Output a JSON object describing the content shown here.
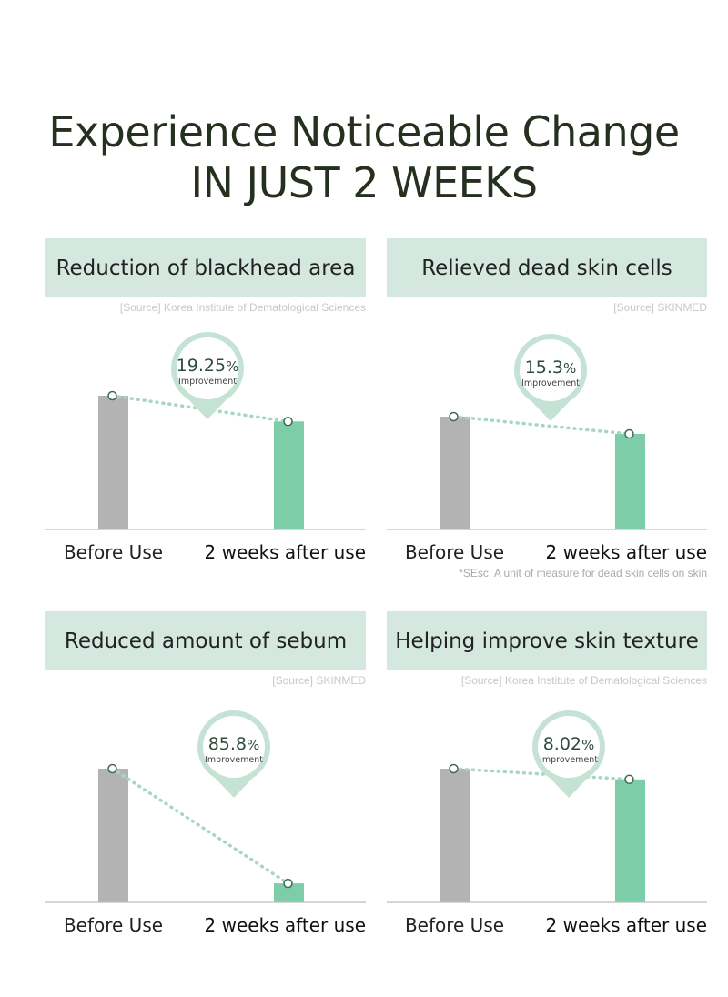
{
  "headline": {
    "line1": "Experience Noticeable Change",
    "line2": "IN JUST 2 WEEKS"
  },
  "colors": {
    "banner": "#d5e8df",
    "before_bar": "#b3b3b3",
    "after_bar": "#7ccda8",
    "dotted_line": "#a9d6c4",
    "badge_ring": "#c4e3d5",
    "badge_percent": "#2e4c3c"
  },
  "chart_data": [
    {
      "type": "bar",
      "title": "Reduction of blackhead area",
      "source": "[Source] Korea Institute of Dematological Sciences",
      "categories": [
        "Before Use",
        "2 weeks after use"
      ],
      "values": [
        100,
        80.75
      ],
      "improvement": "19.25",
      "improvement_unit": "%",
      "improvement_label": "Improvement",
      "footnote": ""
    },
    {
      "type": "bar",
      "title": "Relieved dead skin cells",
      "source": "[Source] SKINMED",
      "categories": [
        "Before Use",
        "2 weeks after use"
      ],
      "values": [
        100,
        84.7
      ],
      "improvement": "15.3",
      "improvement_unit": "%",
      "improvement_label": "Improvement",
      "footnote": "*SEsc: A unit of measure for dead skin cells on skin"
    },
    {
      "type": "bar",
      "title": "Reduced amount of sebum",
      "source": "[Source] SKINMED",
      "categories": [
        "Before Use",
        "2 weeks after use"
      ],
      "values": [
        100,
        14.2
      ],
      "improvement": "85.8",
      "improvement_unit": "%",
      "improvement_label": "Improvement",
      "footnote": ""
    },
    {
      "type": "bar",
      "title": "Helping improve skin texture",
      "source": "[Source] Korea Institute of Dematological Sciences",
      "categories": [
        "Before Use",
        "2 weeks after use"
      ],
      "values": [
        100,
        91.98
      ],
      "improvement": "8.02",
      "improvement_unit": "%",
      "improvement_label": "Improvement",
      "footnote": ""
    }
  ]
}
